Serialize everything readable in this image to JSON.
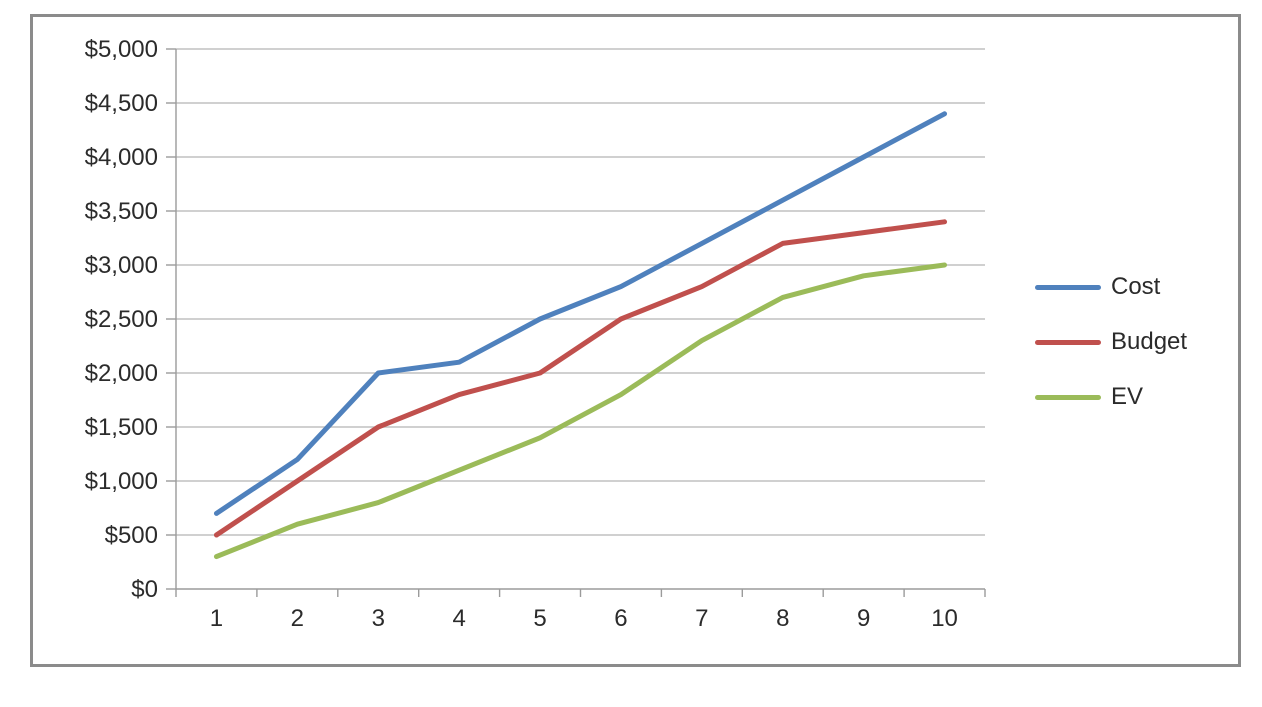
{
  "chart_data": {
    "type": "line",
    "x": [
      1,
      2,
      3,
      4,
      5,
      6,
      7,
      8,
      9,
      10
    ],
    "xtick_labels": [
      "1",
      "2",
      "3",
      "4",
      "5",
      "6",
      "7",
      "8",
      "9",
      "10"
    ],
    "series": [
      {
        "name": "Cost",
        "color": "#4F81BD",
        "values": [
          700,
          1200,
          2000,
          2100,
          2500,
          2800,
          3200,
          3600,
          4000,
          4400
        ]
      },
      {
        "name": "Budget",
        "color": "#C0504D",
        "values": [
          500,
          1000,
          1500,
          1800,
          2000,
          2500,
          2800,
          3200,
          3300,
          3400
        ]
      },
      {
        "name": "EV",
        "color": "#9BBB59",
        "values": [
          300,
          600,
          800,
          1100,
          1400,
          1800,
          2300,
          2700,
          2900,
          3000
        ]
      }
    ],
    "ylim": [
      0,
      5000
    ],
    "ytick_step": 500,
    "ytick_values": [
      0,
      500,
      1000,
      1500,
      2000,
      2500,
      3000,
      3500,
      4000,
      4500,
      5000
    ],
    "ytick_labels": [
      "$0",
      "$500",
      "$1,000",
      "$1,500",
      "$2,000",
      "$2,500",
      "$3,000",
      "$3,500",
      "$4,000",
      "$4,500",
      "$5,000"
    ],
    "grid": true,
    "legend_position": "right",
    "legend_entries": [
      "Cost",
      "Budget",
      "EV"
    ]
  },
  "colors": {
    "background": "#FFFFFF",
    "frame_border": "#8B8B8B",
    "gridline": "#C0C0C0",
    "axis_line": "#9B9B9B",
    "tick_text": "#2B2B2B",
    "series_cost": "#4F81BD",
    "series_budget": "#C0504D",
    "series_ev": "#9BBB59"
  }
}
